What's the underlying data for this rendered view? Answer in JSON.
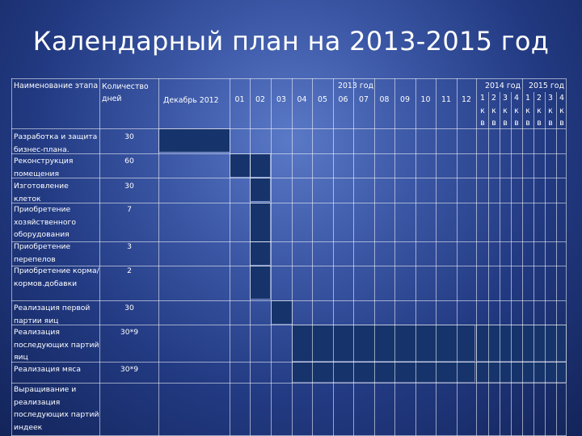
{
  "title": "Календарный план на 2013-2015 год",
  "header": {
    "stage": "Наименование этапа",
    "days": "Количество дней",
    "dec2012": "Декабрь 2012",
    "year2013": "2013 год",
    "months2013": [
      "01",
      "02",
      "03",
      "04",
      "05",
      "06",
      "07",
      "08",
      "09",
      "10",
      "11",
      "12"
    ],
    "year2014": "2014 год",
    "year2015": "2015 год",
    "quarters2014": [
      "1",
      "2",
      "3",
      "4"
    ],
    "quarters2015": [
      "1",
      "2",
      "3",
      "4"
    ],
    "kv": "к в"
  },
  "rows": [
    {
      "name": "Разработка и защита бизнес-плана.",
      "days": "30"
    },
    {
      "name": "Реконструкция помещения",
      "days": "60"
    },
    {
      "name": "Изготовление клеток",
      "days": "30"
    },
    {
      "name": "Приобретение хозяйственного оборудования",
      "days": "7"
    },
    {
      "name": "Приобретение перепелов",
      "days": "3"
    },
    {
      "name": "Приобретение корма/кормов.добавки",
      "days": "2"
    },
    {
      "name": "Реализация первой партии яиц",
      "days": "30"
    },
    {
      "name": "Реализация последующих партий яиц",
      "days": "30*9"
    },
    {
      "name": "Реализация мяса",
      "days": "30*9"
    },
    {
      "name": "Выращивание и реализация последующих партий индеек",
      "days": ""
    }
  ],
  "colors": {
    "bar": "#16346b",
    "grid": "rgba(255,255,255,0.55)"
  }
}
